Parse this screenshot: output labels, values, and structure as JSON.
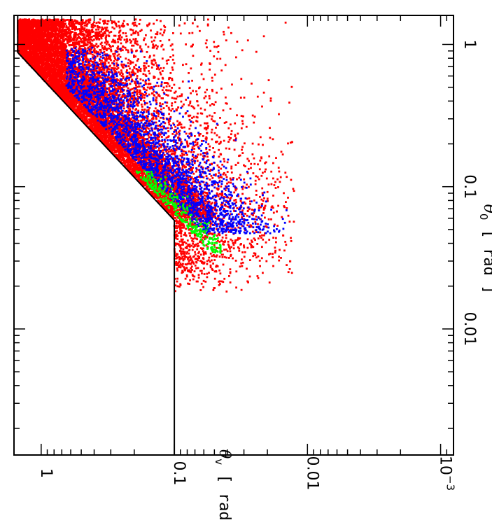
{
  "chart_data": {
    "type": "scatter",
    "title": "",
    "xlabel": {
      "symbol": "θ",
      "sub": "0",
      "unit": "[ rad ]"
    },
    "ylabel": {
      "symbol": "θ",
      "sub": "v",
      "unit": "[ rad ]"
    },
    "x_scale": "log",
    "y_scale": "log",
    "xlim": [
      0.0013,
      1.6
    ],
    "ylim": [
      0.0008,
      1.6
    ],
    "orientation": "rotated 90° clockwise (θ0 axis on the right, θv axis on the bottom)",
    "x_ticks": [
      {
        "value": 0.01,
        "label": "0.01"
      },
      {
        "value": 0.1,
        "label": "0.1"
      },
      {
        "value": 1,
        "label": "1"
      }
    ],
    "y_ticks": [
      {
        "value": 0.001,
        "label": "10",
        "exp": "−3"
      },
      {
        "value": 0.01,
        "label": "0.01"
      },
      {
        "value": 0.1,
        "label": "0.1"
      },
      {
        "value": 1,
        "label": "1"
      }
    ],
    "boundary": {
      "description": "θv = max(0.1, min(θ0·1.7, 1.5))",
      "points": [
        [
          0.0013,
          0.1
        ],
        [
          0.058,
          0.1
        ],
        [
          0.88,
          1.5
        ],
        [
          1.6,
          1.5
        ]
      ]
    },
    "series": [
      {
        "color": "#ff0000",
        "color_name": "red",
        "approx_points": 9000,
        "population": "fills region below boundary down to roughly 0.3·θ0, dense near the boundary"
      },
      {
        "color": "#0000ff",
        "color_name": "blue",
        "approx_points": 2400,
        "population": "band roughly 0.25–0.9 of the boundary for θ0 in 0.05–0.6"
      },
      {
        "color": "#00ff00",
        "color_name": "green",
        "approx_points": 300,
        "population": "narrow band just below the boundary for θ0 in 0.04–0.12"
      }
    ],
    "scatter_extent": {
      "red_x": [
        0.018,
        1.5
      ],
      "red_y": [
        0.0125,
        1.5
      ],
      "blue_x": [
        0.047,
        0.95
      ],
      "blue_y": [
        0.0035,
        0.65
      ],
      "green_x": [
        0.034,
        0.13
      ],
      "green_y": [
        0.045,
        0.2
      ]
    },
    "grid": false,
    "legend": "none"
  }
}
